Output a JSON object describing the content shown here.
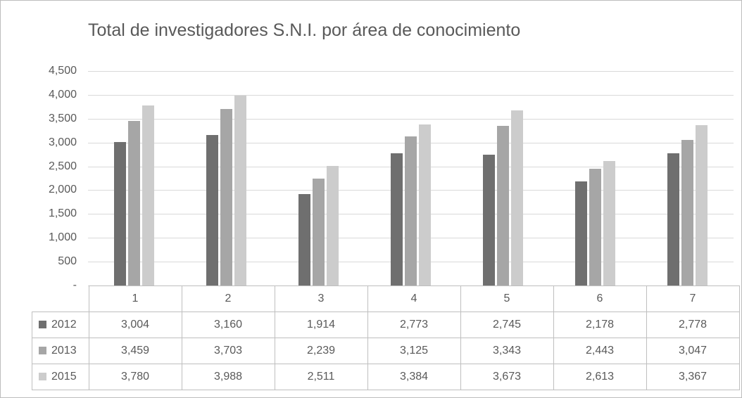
{
  "chart_data": {
    "type": "bar",
    "title": "Total de investigadores S.N.I. por área de conocimiento",
    "categories": [
      "1",
      "2",
      "3",
      "4",
      "5",
      "6",
      "7"
    ],
    "series": [
      {
        "name": "2012",
        "color": "#6f6f6f",
        "values": [
          3004,
          3160,
          1914,
          2773,
          2745,
          2178,
          2778
        ]
      },
      {
        "name": "2013",
        "color": "#a6a6a6",
        "values": [
          3459,
          3703,
          2239,
          3125,
          3343,
          2443,
          3047
        ]
      },
      {
        "name": "2015",
        "color": "#cccccc",
        "values": [
          3780,
          3988,
          2511,
          3384,
          3673,
          2613,
          3367
        ]
      }
    ],
    "xlabel": "",
    "ylabel": "",
    "ylim": [
      0,
      4500
    ],
    "y_tick_step": 500,
    "y_tick_labels": [
      "4,500",
      "4,000",
      "3,500",
      "3,000",
      "2,500",
      "2,000",
      "1,500",
      "1,000",
      "500",
      "-"
    ],
    "grid": true,
    "legend_position": "data-table-left"
  },
  "table": {
    "header": [
      "1",
      "2",
      "3",
      "4",
      "5",
      "6",
      "7"
    ],
    "rows": [
      {
        "label": "2012",
        "values": [
          "3,004",
          "3,160",
          "1,914",
          "2,773",
          "2,745",
          "2,178",
          "2,778"
        ]
      },
      {
        "label": "2013",
        "values": [
          "3,459",
          "3,703",
          "2,239",
          "3,125",
          "3,343",
          "2,443",
          "3,047"
        ]
      },
      {
        "label": "2015",
        "values": [
          "3,780",
          "3,988",
          "2,511",
          "3,384",
          "3,673",
          "2,613",
          "3,367"
        ]
      }
    ]
  }
}
